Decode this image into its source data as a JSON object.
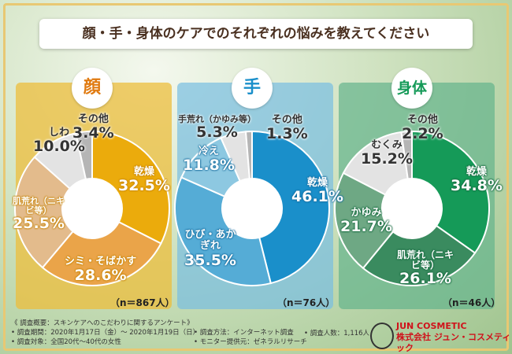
{
  "title": "顔・手・身体のケアでのそれぞれの悩みを教えてください",
  "chart_data": [
    {
      "type": "pie",
      "donut": true,
      "title": "顔",
      "sample": "（n＝867人）",
      "categories": [
        "乾燥",
        "シミ・そばかす",
        "肌荒れ（ニキビ等）",
        "しわ",
        "その他"
      ],
      "values": [
        32.5,
        28.6,
        25.5,
        10.0,
        3.4
      ],
      "labels": [
        "32.5%",
        "28.6%",
        "25.5%",
        "10.0%",
        "3.4%"
      ],
      "colors": [
        "#ebab0c",
        "#eaa449",
        "#e3bb8c",
        "#e3e3e3",
        "#b5b5b5"
      ]
    },
    {
      "type": "pie",
      "donut": true,
      "title": "手",
      "sample": "（n＝76人）",
      "categories": [
        "乾燥",
        "ひび・あかぎれ",
        "冷え",
        "手荒れ（かゆみ等）",
        "その他"
      ],
      "values": [
        46.1,
        35.5,
        11.8,
        5.3,
        1.3
      ],
      "labels": [
        "46.1%",
        "35.5%",
        "11.8%",
        "5.3%",
        "1.3%"
      ],
      "colors": [
        "#1a8fca",
        "#55acd6",
        "#8dc8e1",
        "#e3e3e3",
        "#b5b5b5"
      ]
    },
    {
      "type": "pie",
      "donut": true,
      "title": "身体",
      "sample": "（n＝46人）",
      "categories": [
        "乾燥",
        "肌荒れ（ニキビ等）",
        "かゆみ",
        "むくみ",
        "その他"
      ],
      "values": [
        34.8,
        26.1,
        21.7,
        15.2,
        2.2
      ],
      "labels": [
        "34.8%",
        "26.1%",
        "21.7%",
        "15.2%",
        "2.2%"
      ],
      "colors": [
        "#159a58",
        "#3a8b5f",
        "#6ea884",
        "#e3e3e3",
        "#b5b5b5"
      ]
    }
  ],
  "footer": {
    "summary": "《 調査概要：スキンケアへのこだわりに関するアンケート》",
    "period": "• 調査期間：2020年1月17日（金）～ 2020年1月19日（日）",
    "target": "• 調査対象：全国20代～40代の女性",
    "method": "• 調査方法：インターネット調査",
    "provider": "• モニター提供元：ゼネラルリサーチ",
    "count": "• 調査人数：1,116人"
  },
  "brand": {
    "en": "JUN COSMETIC",
    "jp": "株式会社 ジュン・コスメティック"
  }
}
